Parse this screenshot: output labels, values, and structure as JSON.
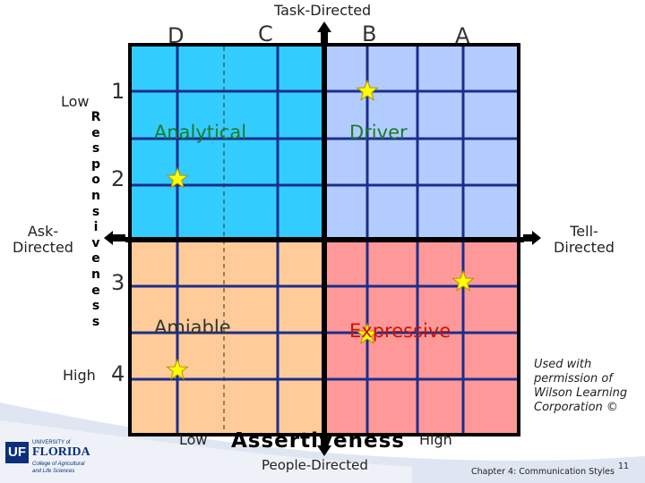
{
  "header": {
    "task_directed": "Task-Directed",
    "people_directed": "People-Directed"
  },
  "letters": {
    "d": "D",
    "c": "C",
    "b": "B",
    "a": "A"
  },
  "numbers": {
    "n1": "1",
    "n2": "2",
    "n3": "3",
    "n4": "4"
  },
  "responsiveness": {
    "low": "Low",
    "high": "High",
    "word": "Responsiveness"
  },
  "sides": {
    "ask": "Ask-\nDirected",
    "tell": "Tell-\nDirected"
  },
  "quadrants": {
    "analytical": "Analytical",
    "driver": "Driver",
    "amiable": "Amiable",
    "expressive": "Expressive"
  },
  "assertiveness": {
    "low": "Low",
    "word": "Assertiveness",
    "high": "High"
  },
  "credit": "Used with\npermission of\nWilson Learning\nCorporation ©",
  "logo": {
    "line1": "UNIVERSITY of",
    "line2": "FLORIDA",
    "line3": "College of Agricultural",
    "line4": "and Life Sciences",
    "uf": "UF"
  },
  "footer": {
    "chapter": "Chapter 4: Communication Styles",
    "page": "11"
  },
  "colors": {
    "analytical": "#33ccff",
    "driver": "#b3ccff",
    "amiable": "#ffcc99",
    "expressive": "#ff9999",
    "grid": "#1c2e8c",
    "divider": "#000000",
    "quadrant_text_green": "#1d7a2a",
    "quadrant_text_red": "#cc1100"
  },
  "markers": [
    {
      "name": "star-driver-top",
      "row": 1,
      "col": "B"
    },
    {
      "name": "star-analytical-2",
      "row": 2,
      "col": "D"
    },
    {
      "name": "star-expressive-3",
      "row": 3,
      "col": "A"
    },
    {
      "name": "star-expressive-label",
      "row": 3.5,
      "col": "B"
    },
    {
      "name": "star-amiable-4",
      "row": 4,
      "col": "D"
    }
  ]
}
